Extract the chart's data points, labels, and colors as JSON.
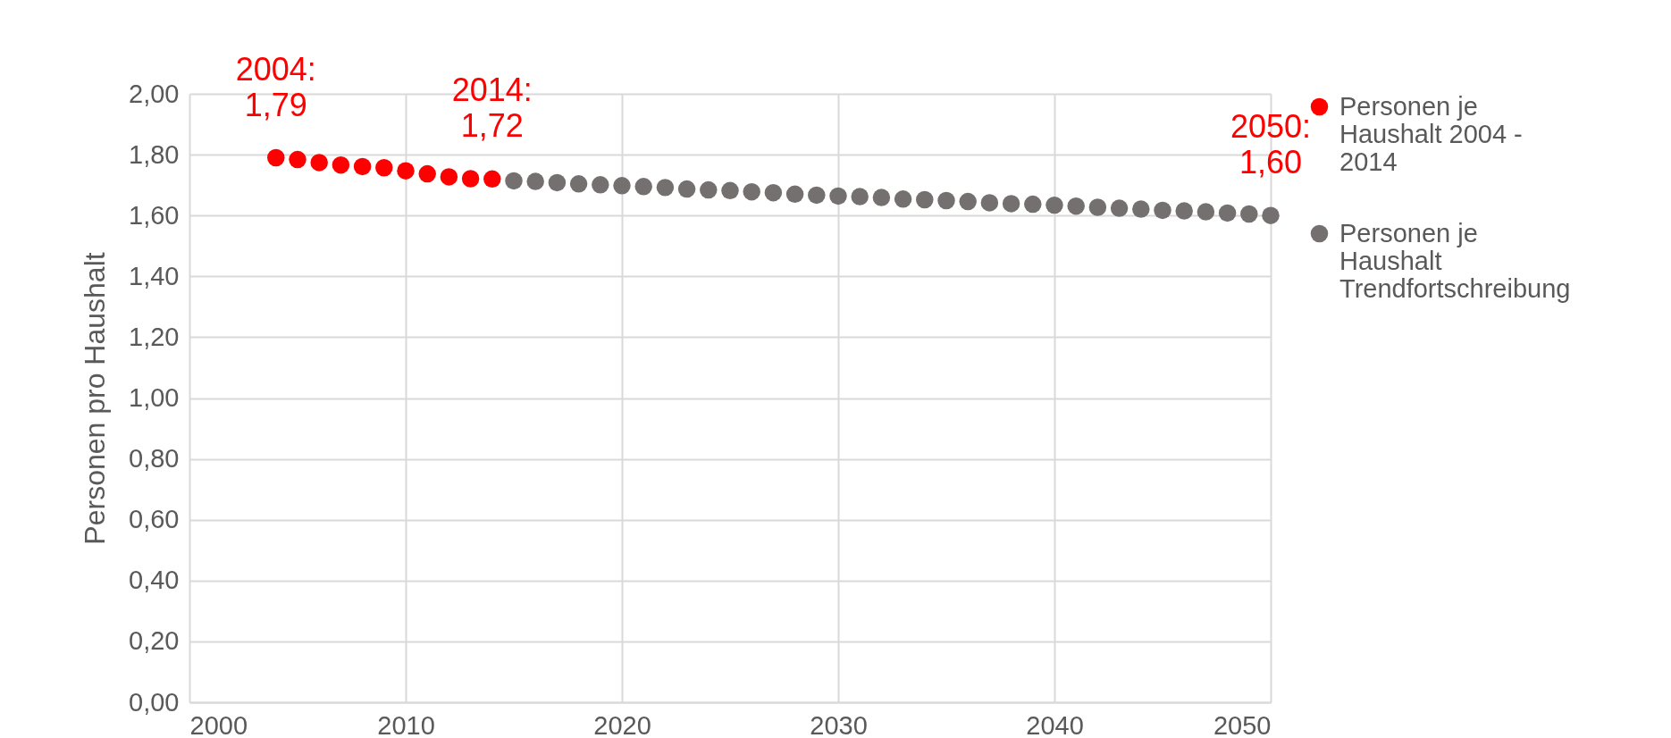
{
  "chart_data": {
    "type": "scatter",
    "ylabel": "Personen pro Haushalt",
    "marker": "circle",
    "grid": true,
    "legend": "right",
    "xlim": [
      2000,
      2050
    ],
    "xticks": [
      2000,
      2010,
      2020,
      2030,
      2040,
      2050
    ],
    "ylim": [
      0,
      2
    ],
    "yticks": [
      {
        "value": 0,
        "label": "0,00"
      },
      {
        "value": 0.2,
        "label": "0,20"
      },
      {
        "value": 0.4,
        "label": "0,40"
      },
      {
        "value": 0.6,
        "label": "0,60"
      },
      {
        "value": 0.8,
        "label": "0,80"
      },
      {
        "value": 1,
        "label": "1,00"
      },
      {
        "value": 1.2,
        "label": "1,20"
      },
      {
        "value": 1.4,
        "label": "1,40"
      },
      {
        "value": 1.6,
        "label": "1,60"
      },
      {
        "value": 1.8,
        "label": "1,80"
      },
      {
        "value": 2,
        "label": "2,00"
      }
    ],
    "series": [
      {
        "name": "Personen je Haushalt 2004 - 2014",
        "color": "#ff0000",
        "x": [
          2004,
          2005,
          2006,
          2007,
          2008,
          2009,
          2010,
          2011,
          2012,
          2013,
          2014
        ],
        "values": [
          1.79,
          1.784,
          1.774,
          1.766,
          1.761,
          1.757,
          1.747,
          1.737,
          1.727,
          1.721,
          1.72
        ]
      },
      {
        "name": "Personen je Haushalt Trendfortschreibung",
        "color": "#757070",
        "x": [
          2015,
          2016,
          2017,
          2018,
          2019,
          2020,
          2021,
          2022,
          2023,
          2024,
          2025,
          2026,
          2027,
          2028,
          2029,
          2030,
          2031,
          2032,
          2033,
          2034,
          2035,
          2036,
          2037,
          2038,
          2039,
          2040,
          2041,
          2042,
          2043,
          2044,
          2045,
          2046,
          2047,
          2048,
          2049,
          2050
        ],
        "values": [
          1.714,
          1.712,
          1.708,
          1.704,
          1.701,
          1.698,
          1.695,
          1.692,
          1.687,
          1.684,
          1.682,
          1.678,
          1.675,
          1.67,
          1.667,
          1.664,
          1.662,
          1.659,
          1.654,
          1.652,
          1.649,
          1.646,
          1.642,
          1.639,
          1.637,
          1.634,
          1.631,
          1.627,
          1.624,
          1.621,
          1.617,
          1.615,
          1.612,
          1.608,
          1.605,
          1.6
        ]
      }
    ],
    "annotations": [
      {
        "text": "2004:\n1,79",
        "x": 2004,
        "y": 1.79
      },
      {
        "text": "2014:\n1,72",
        "x": 2014,
        "y": 1.72
      },
      {
        "text": "2050:\n1,60",
        "x": 2050,
        "y": 1.6
      }
    ]
  }
}
